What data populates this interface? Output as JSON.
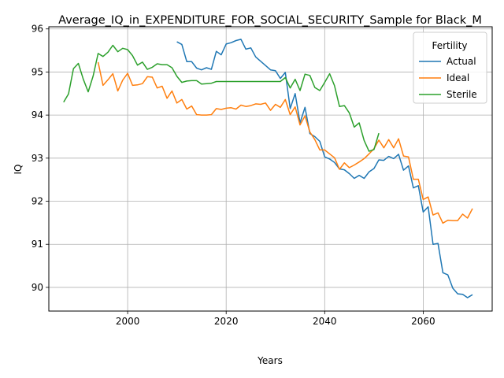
{
  "chart_data": {
    "type": "line",
    "title": "Average_IQ_in_EXPENDITURE_FOR_SOCIAL_SECURITY_Sample for Black_M",
    "xlabel": "Years",
    "ylabel": "IQ",
    "xlim": [
      1984,
      2074
    ],
    "ylim": [
      89.45,
      96.05
    ],
    "xticks": [
      2000,
      2020,
      2040,
      2060
    ],
    "yticks": [
      90,
      91,
      92,
      93,
      94,
      95,
      96
    ],
    "grid": true,
    "legend": {
      "title": "Fertility",
      "position": "top-right"
    },
    "series": [
      {
        "name": "Actual",
        "color": "#1f77b4",
        "points": [
          [
            2010,
            95.7
          ],
          [
            2011,
            95.64
          ],
          [
            2012,
            95.24
          ],
          [
            2013,
            95.24
          ],
          [
            2014,
            95.09
          ],
          [
            2015,
            95.05
          ],
          [
            2016,
            95.1
          ],
          [
            2017,
            95.06
          ],
          [
            2018,
            95.48
          ],
          [
            2019,
            95.4
          ],
          [
            2020,
            95.65
          ],
          [
            2021,
            95.68
          ],
          [
            2022,
            95.73
          ],
          [
            2023,
            95.76
          ],
          [
            2024,
            95.53
          ],
          [
            2025,
            95.56
          ],
          [
            2026,
            95.35
          ],
          [
            2027,
            95.25
          ],
          [
            2028,
            95.15
          ],
          [
            2029,
            95.05
          ],
          [
            2030,
            95.03
          ],
          [
            2031,
            94.85
          ],
          [
            2032,
            94.99
          ],
          [
            2033,
            94.15
          ],
          [
            2034,
            94.5
          ],
          [
            2035,
            93.82
          ],
          [
            2036,
            94.18
          ],
          [
            2037,
            93.57
          ],
          [
            2038,
            93.5
          ],
          [
            2039,
            93.39
          ],
          [
            2040,
            93.03
          ],
          [
            2041,
            92.98
          ],
          [
            2042,
            92.9
          ],
          [
            2043,
            92.75
          ],
          [
            2044,
            92.73
          ],
          [
            2045,
            92.64
          ],
          [
            2046,
            92.53
          ],
          [
            2047,
            92.6
          ],
          [
            2048,
            92.53
          ],
          [
            2049,
            92.68
          ],
          [
            2050,
            92.76
          ],
          [
            2051,
            92.96
          ],
          [
            2052,
            92.95
          ],
          [
            2053,
            93.04
          ],
          [
            2054,
            92.99
          ],
          [
            2055,
            93.09
          ],
          [
            2056,
            92.72
          ],
          [
            2057,
            92.82
          ],
          [
            2058,
            92.31
          ],
          [
            2059,
            92.36
          ],
          [
            2060,
            91.75
          ],
          [
            2061,
            91.87
          ],
          [
            2062,
            91.0
          ],
          [
            2063,
            91.02
          ],
          [
            2064,
            90.34
          ],
          [
            2065,
            90.29
          ],
          [
            2066,
            89.98
          ],
          [
            2067,
            89.85
          ],
          [
            2068,
            89.84
          ],
          [
            2069,
            89.76
          ],
          [
            2070,
            89.83
          ]
        ]
      },
      {
        "name": "Ideal",
        "color": "#ff7f0e",
        "points": [
          [
            1994,
            95.23
          ],
          [
            1995,
            94.69
          ],
          [
            1996,
            94.82
          ],
          [
            1997,
            94.96
          ],
          [
            1998,
            94.56
          ],
          [
            1999,
            94.81
          ],
          [
            2000,
            94.97
          ],
          [
            2001,
            94.69
          ],
          [
            2002,
            94.7
          ],
          [
            2003,
            94.73
          ],
          [
            2004,
            94.89
          ],
          [
            2005,
            94.88
          ],
          [
            2006,
            94.63
          ],
          [
            2007,
            94.67
          ],
          [
            2008,
            94.39
          ],
          [
            2009,
            94.56
          ],
          [
            2010,
            94.28
          ],
          [
            2011,
            94.36
          ],
          [
            2012,
            94.14
          ],
          [
            2013,
            94.21
          ],
          [
            2014,
            94.01
          ],
          [
            2015,
            94.0
          ],
          [
            2016,
            94.0
          ],
          [
            2017,
            94.01
          ],
          [
            2018,
            94.15
          ],
          [
            2019,
            94.13
          ],
          [
            2020,
            94.16
          ],
          [
            2021,
            94.17
          ],
          [
            2022,
            94.14
          ],
          [
            2023,
            94.23
          ],
          [
            2024,
            94.2
          ],
          [
            2025,
            94.22
          ],
          [
            2026,
            94.26
          ],
          [
            2027,
            94.25
          ],
          [
            2028,
            94.28
          ],
          [
            2029,
            94.11
          ],
          [
            2030,
            94.25
          ],
          [
            2031,
            94.18
          ],
          [
            2032,
            94.36
          ],
          [
            2033,
            94.01
          ],
          [
            2034,
            94.19
          ],
          [
            2035,
            93.77
          ],
          [
            2036,
            93.98
          ],
          [
            2037,
            93.61
          ],
          [
            2038,
            93.43
          ],
          [
            2039,
            93.19
          ],
          [
            2040,
            93.19
          ],
          [
            2041,
            93.1
          ],
          [
            2042,
            93.01
          ],
          [
            2043,
            92.74
          ],
          [
            2044,
            92.89
          ],
          [
            2045,
            92.78
          ],
          [
            2046,
            92.84
          ],
          [
            2047,
            92.91
          ],
          [
            2048,
            92.99
          ],
          [
            2049,
            93.1
          ],
          [
            2050,
            93.22
          ],
          [
            2051,
            93.42
          ],
          [
            2052,
            93.24
          ],
          [
            2053,
            93.43
          ],
          [
            2054,
            93.24
          ],
          [
            2055,
            93.45
          ],
          [
            2056,
            93.05
          ],
          [
            2057,
            93.03
          ],
          [
            2058,
            92.51
          ],
          [
            2059,
            92.51
          ],
          [
            2060,
            92.04
          ],
          [
            2061,
            92.1
          ],
          [
            2062,
            91.68
          ],
          [
            2063,
            91.73
          ],
          [
            2064,
            91.49
          ],
          [
            2065,
            91.56
          ],
          [
            2066,
            91.55
          ],
          [
            2067,
            91.55
          ],
          [
            2068,
            91.7
          ],
          [
            2069,
            91.61
          ],
          [
            2070,
            91.83
          ]
        ]
      },
      {
        "name": "Sterile",
        "color": "#2ca02c",
        "points": [
          [
            1987,
            94.3
          ],
          [
            1988,
            94.49
          ],
          [
            1989,
            95.08
          ],
          [
            1990,
            95.2
          ],
          [
            1991,
            94.83
          ],
          [
            1992,
            94.54
          ],
          [
            1993,
            94.91
          ],
          [
            1994,
            95.43
          ],
          [
            1995,
            95.36
          ],
          [
            1996,
            95.46
          ],
          [
            1997,
            95.62
          ],
          [
            1998,
            95.47
          ],
          [
            1999,
            95.55
          ],
          [
            2000,
            95.52
          ],
          [
            2001,
            95.38
          ],
          [
            2002,
            95.16
          ],
          [
            2003,
            95.23
          ],
          [
            2004,
            95.06
          ],
          [
            2005,
            95.11
          ],
          [
            2006,
            95.19
          ],
          [
            2007,
            95.17
          ],
          [
            2008,
            95.17
          ],
          [
            2009,
            95.1
          ],
          [
            2010,
            94.9
          ],
          [
            2011,
            94.76
          ],
          [
            2012,
            94.79
          ],
          [
            2013,
            94.8
          ],
          [
            2014,
            94.8
          ],
          [
            2015,
            94.72
          ],
          [
            2016,
            94.73
          ],
          [
            2017,
            94.74
          ],
          [
            2018,
            94.78
          ],
          [
            2019,
            94.78
          ],
          [
            2020,
            94.78
          ],
          [
            2021,
            94.78
          ],
          [
            2022,
            94.78
          ],
          [
            2023,
            94.78
          ],
          [
            2024,
            94.78
          ],
          [
            2025,
            94.78
          ],
          [
            2026,
            94.78
          ],
          [
            2027,
            94.78
          ],
          [
            2028,
            94.78
          ],
          [
            2029,
            94.78
          ],
          [
            2030,
            94.78
          ],
          [
            2031,
            94.78
          ],
          [
            2032,
            94.87
          ],
          [
            2033,
            94.63
          ],
          [
            2034,
            94.83
          ],
          [
            2035,
            94.57
          ],
          [
            2036,
            94.95
          ],
          [
            2037,
            94.92
          ],
          [
            2038,
            94.64
          ],
          [
            2039,
            94.57
          ],
          [
            2040,
            94.76
          ],
          [
            2041,
            94.96
          ],
          [
            2042,
            94.68
          ],
          [
            2043,
            94.2
          ],
          [
            2044,
            94.22
          ],
          [
            2045,
            94.05
          ],
          [
            2046,
            93.72
          ],
          [
            2047,
            93.82
          ],
          [
            2048,
            93.41
          ],
          [
            2049,
            93.16
          ],
          [
            2050,
            93.2
          ],
          [
            2051,
            93.58
          ]
        ]
      }
    ]
  }
}
